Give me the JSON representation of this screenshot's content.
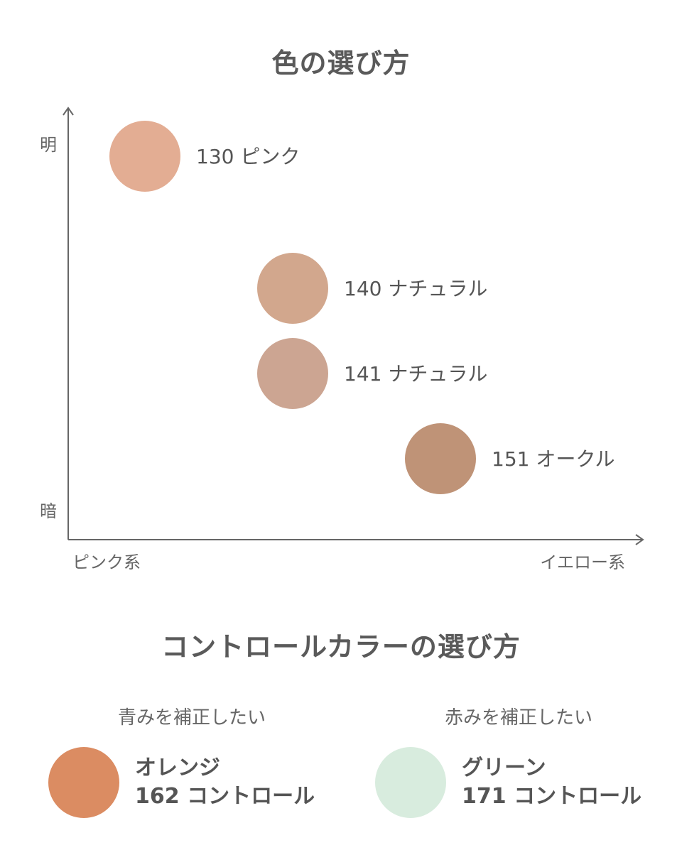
{
  "chart_title": "色の選び方",
  "chart_data": {
    "type": "scatter",
    "title": "色の選び方",
    "x_axis": {
      "low_label": "ピンク系",
      "high_label": "イエロー系",
      "range": [
        0,
        10
      ]
    },
    "y_axis": {
      "low_label": "暗",
      "high_label": "明",
      "range": [
        0,
        10
      ]
    },
    "points": [
      {
        "label": "130 ピンク",
        "x": 1.35,
        "y": 9.0,
        "color": "#e3ad93"
      },
      {
        "label": "140 ナチュラル",
        "x": 3.95,
        "y": 5.9,
        "color": "#d2a78d"
      },
      {
        "label": "141 ナチュラル",
        "x": 3.95,
        "y": 3.9,
        "color": "#cca592"
      },
      {
        "label": "151 オークル",
        "x": 6.55,
        "y": 1.9,
        "color": "#bf9377"
      }
    ]
  },
  "control_title": "コントロールカラーの選び方",
  "controls": [
    {
      "heading": "青みを補正したい",
      "color_name": "オレンジ",
      "product": "162 コントロール",
      "color": "#db8c62"
    },
    {
      "heading": "赤みを補正したい",
      "color_name": "グリーン",
      "product": "171 コントロール",
      "color": "#d8ecde"
    }
  ]
}
